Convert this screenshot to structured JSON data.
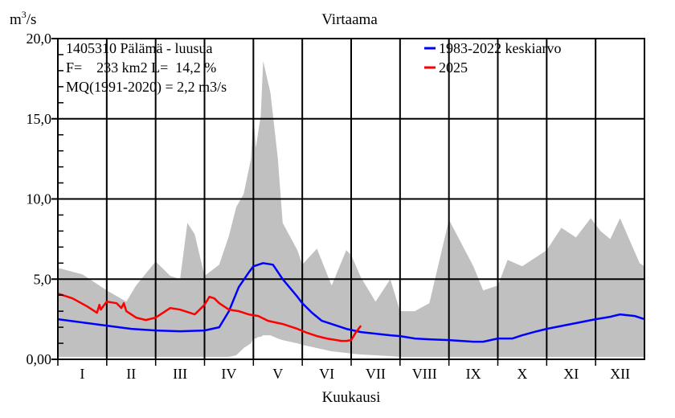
{
  "chart_data": {
    "type": "area",
    "title": "Virtaama",
    "ylabel_unit": "m3/s",
    "xlabel": "Kuukausi",
    "ylim": [
      0,
      20
    ],
    "y_ticks": [
      "0,00",
      "5,0",
      "10,0",
      "15,0",
      "20,0"
    ],
    "y_tick_values": [
      0,
      5,
      10,
      15,
      20
    ],
    "x_categories": [
      "I",
      "II",
      "III",
      "IV",
      "V",
      "VI",
      "VII",
      "VIII",
      "IX",
      "X",
      "XI",
      "XII"
    ],
    "xlim": [
      0,
      12
    ],
    "grid": true,
    "info_lines": [
      "1405310 Pälämä - luusua",
      "F=    233 km2 L=  14,2 %",
      "MQ(1991-2020) = 2,2 m3/s"
    ],
    "legend": [
      {
        "label": "1983-2022 keskiarvo",
        "color": "#0000ff"
      },
      {
        "label": "2025",
        "color": "#ff0000"
      }
    ],
    "range_band": {
      "color": "#c0c0c0",
      "x": [
        0,
        0.5,
        1,
        1.4,
        1.6,
        2,
        2.3,
        2.5,
        2.65,
        2.8,
        3,
        3.3,
        3.5,
        3.65,
        3.8,
        3.95,
        4.0,
        4.05,
        4.1,
        4.15,
        4.2,
        4.35,
        4.5,
        4.6,
        4.9,
        5,
        5.3,
        5.6,
        5.9,
        6,
        6.2,
        6.5,
        6.8,
        7,
        7.3,
        7.6,
        8,
        8.5,
        8.7,
        9.0,
        9.2,
        9.5,
        10,
        10.3,
        10.6,
        10.9,
        11.1,
        11.3,
        11.5,
        11.9,
        12
      ],
      "upper": [
        5.7,
        5.3,
        4.3,
        3.6,
        4.6,
        6.1,
        5.2,
        5.0,
        8.5,
        7.8,
        5.2,
        5.9,
        7.7,
        9.5,
        10.3,
        12.5,
        15.3,
        13.2,
        14.2,
        15.2,
        18.6,
        16.6,
        12.5,
        8.5,
        6.8,
        5.9,
        6.9,
        4.6,
        6.8,
        6.5,
        5.1,
        3.6,
        5.0,
        3.0,
        3.0,
        3.5,
        8.7,
        5.8,
        4.3,
        4.6,
        6.2,
        5.8,
        6.8,
        8.2,
        7.6,
        8.8,
        8.0,
        7.5,
        8.8,
        6.0,
        5.8
      ],
      "lower": [
        0.15,
        0.15,
        0.15,
        0.15,
        0.15,
        0.15,
        0.15,
        0.15,
        0.15,
        0.15,
        0.15,
        0.15,
        0.15,
        0.25,
        0.7,
        1.0,
        1.3,
        1.3,
        1.4,
        1.4,
        1.5,
        1.5,
        1.3,
        1.2,
        1.0,
        0.9,
        0.7,
        0.5,
        0.4,
        0.35,
        0.3,
        0.25,
        0.2,
        0.15,
        0.15,
        0.15,
        0.15,
        0.15,
        0.15,
        0.15,
        0.15,
        0.15,
        0.15,
        0.15,
        0.15,
        0.15,
        0.15,
        0.15,
        0.15,
        0.15,
        0.15
      ]
    },
    "series": [
      {
        "name": "1983-2022 keskiarvo",
        "color": "#0000ff",
        "x": [
          0,
          0.5,
          1,
          1.5,
          2,
          2.5,
          3,
          3.3,
          3.5,
          3.7,
          3.9,
          4.0,
          4.2,
          4.4,
          4.6,
          4.9,
          5,
          5.2,
          5.4,
          5.6,
          5.9,
          6.2,
          6.5,
          6.8,
          7.0,
          7.3,
          7.6,
          8,
          8.5,
          8.7,
          9.0,
          9.3,
          9.5,
          9.8,
          10,
          10.5,
          11,
          11.3,
          11.5,
          11.8,
          12
        ],
        "y": [
          2.5,
          2.3,
          2.1,
          1.9,
          1.8,
          1.75,
          1.8,
          2.0,
          3.0,
          4.5,
          5.4,
          5.8,
          6.0,
          5.9,
          5.0,
          3.9,
          3.5,
          2.9,
          2.4,
          2.2,
          1.9,
          1.7,
          1.6,
          1.5,
          1.45,
          1.3,
          1.25,
          1.2,
          1.1,
          1.1,
          1.3,
          1.3,
          1.5,
          1.75,
          1.9,
          2.2,
          2.5,
          2.65,
          2.8,
          2.7,
          2.5
        ]
      },
      {
        "name": "2025",
        "color": "#ff0000",
        "x": [
          0,
          0.3,
          0.6,
          0.8,
          0.85,
          0.88,
          0.9,
          1.0,
          1.2,
          1.3,
          1.35,
          1.4,
          1.6,
          1.8,
          2.0,
          2.3,
          2.5,
          2.8,
          3.0,
          3.1,
          3.2,
          3.3,
          3.5,
          3.7,
          3.9,
          4.1,
          4.3,
          4.6,
          4.9,
          5.1,
          5.3,
          5.5,
          5.7,
          5.8,
          5.9,
          6.0,
          6.1,
          6.2
        ],
        "y": [
          4.1,
          3.8,
          3.3,
          2.9,
          3.4,
          3.1,
          3.2,
          3.6,
          3.5,
          3.2,
          3.5,
          3.0,
          2.6,
          2.45,
          2.6,
          3.2,
          3.1,
          2.8,
          3.4,
          3.9,
          3.8,
          3.5,
          3.1,
          3.0,
          2.8,
          2.7,
          2.4,
          2.2,
          1.9,
          1.65,
          1.45,
          1.3,
          1.2,
          1.15,
          1.15,
          1.2,
          1.7,
          2.1
        ]
      }
    ]
  }
}
